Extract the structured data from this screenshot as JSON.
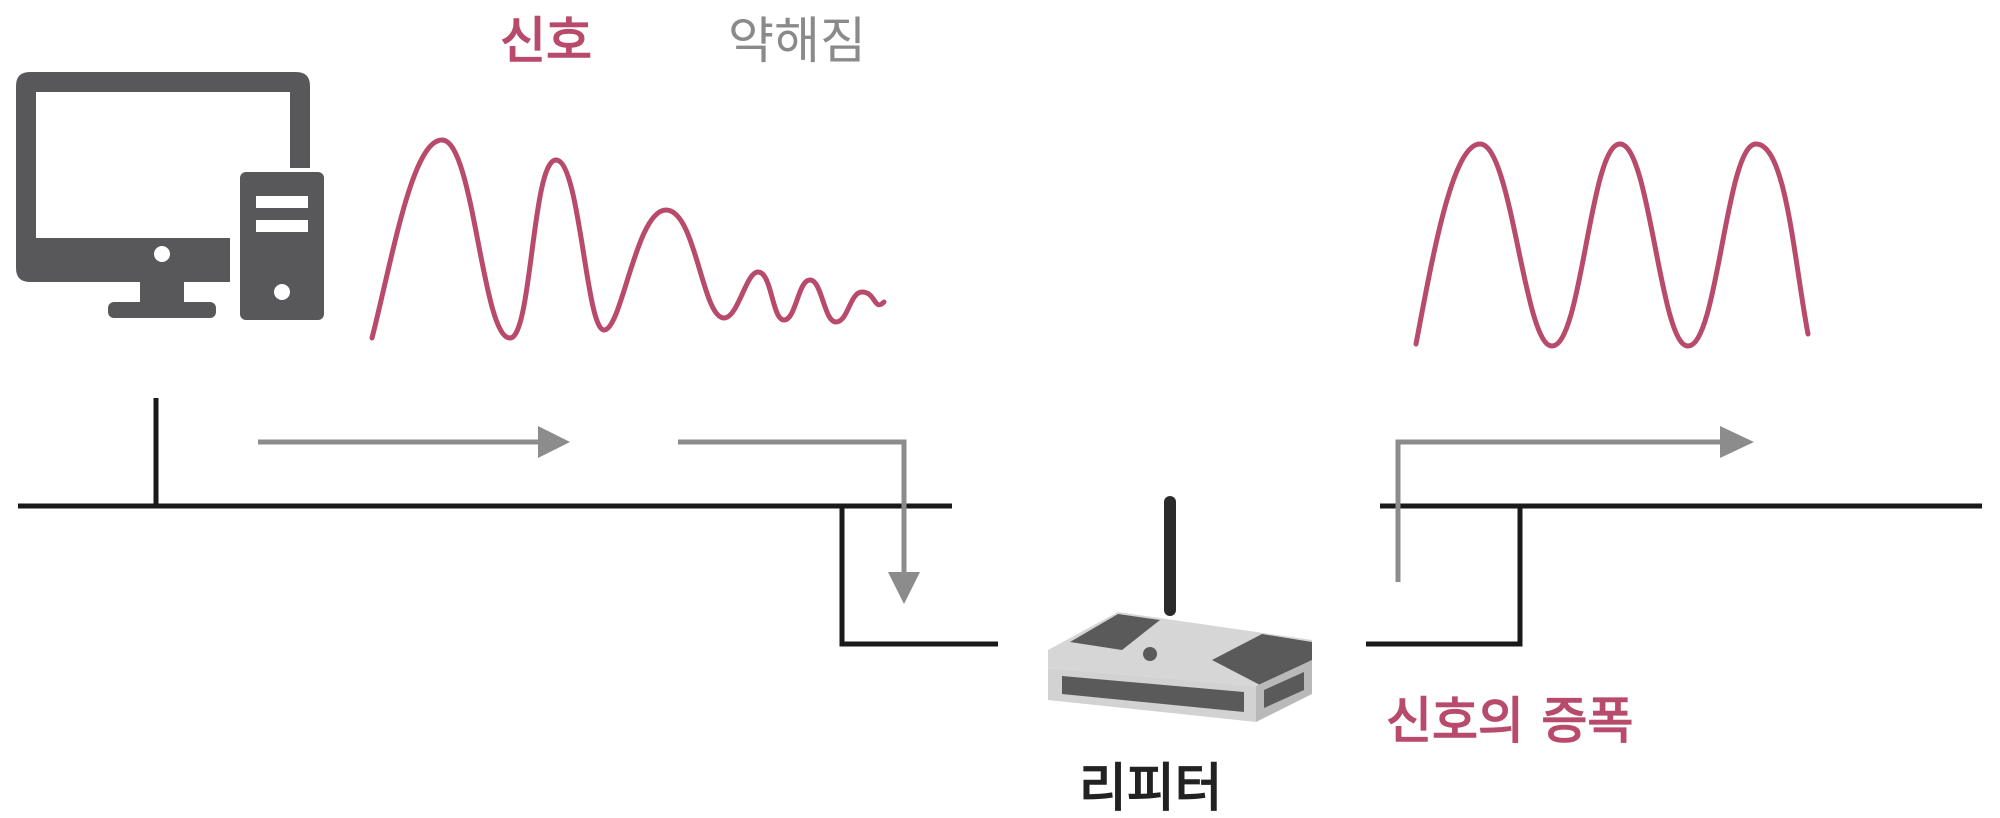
{
  "labels": {
    "signal": "신호",
    "weakened": "약해짐",
    "amplification": "신호의 증폭",
    "repeater": "리피터"
  },
  "colors": {
    "signal": "#b84a6b",
    "weakened_text": "#8a8a8a",
    "line": "#1a1a1a",
    "arrow": "#8c8c8c",
    "device": "#58585a",
    "repeater_body": "#d6d6d6",
    "repeater_dark": "#5a5a5a",
    "label_dark": "#222222"
  },
  "icons": {
    "computer": "desktop-computer-icon",
    "repeater": "repeater-router-icon"
  }
}
